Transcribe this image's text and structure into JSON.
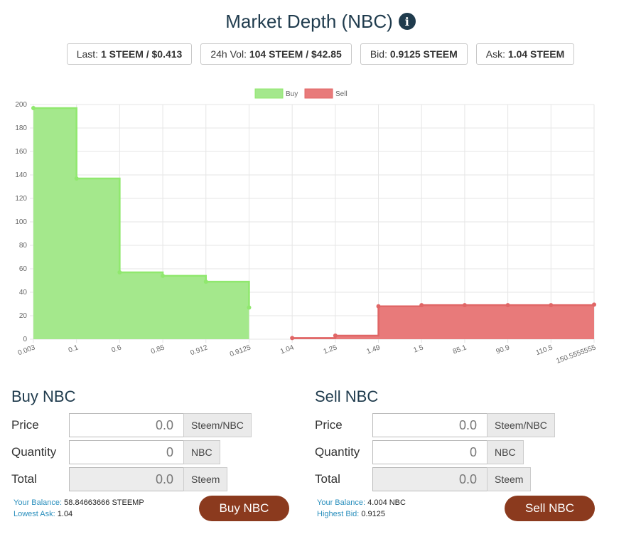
{
  "header": {
    "title": "Market Depth (NBC)",
    "info_icon": "info-circle-icon"
  },
  "stats": [
    {
      "label": "Last:",
      "value": "1 STEEM / $0.413"
    },
    {
      "label": "24h Vol:",
      "value": "104 STEEM / $42.85"
    },
    {
      "label": "Bid:",
      "value": "0.9125 STEEM"
    },
    {
      "label": "Ask:",
      "value": "1.04 STEEM"
    }
  ],
  "chart_data": {
    "type": "area",
    "categories": [
      "0.003",
      "0.1",
      "0.6",
      "0.85",
      "0.912",
      "0.9125",
      "1.04",
      "1.25",
      "1.49",
      "1.5",
      "85.1",
      "90.9",
      "110.5",
      "150.5555555"
    ],
    "series": [
      {
        "name": "Buy",
        "color": "#a4e88c",
        "line_color": "#90e86e",
        "values": [
          197,
          137,
          57,
          54,
          49,
          27,
          null,
          null,
          null,
          null,
          null,
          null,
          null,
          null
        ]
      },
      {
        "name": "Sell",
        "color": "#e87a7a",
        "line_color": "#e06666",
        "values": [
          null,
          null,
          null,
          null,
          null,
          null,
          1,
          3,
          28,
          29,
          29,
          29,
          29,
          29.5
        ]
      }
    ],
    "ylim": [
      0,
      200
    ],
    "yticks": [
      0,
      20,
      40,
      60,
      80,
      100,
      120,
      140,
      160,
      180,
      200
    ],
    "step": true,
    "grid": true,
    "legend_position": "top-center"
  },
  "buy": {
    "title": "Buy NBC",
    "price_label": "Price",
    "price_value": "0.0",
    "price_unit": "Steem/NBC",
    "quantity_label": "Quantity",
    "quantity_value": "0",
    "quantity_unit": "NBC",
    "total_label": "Total",
    "total_value": "0.0",
    "total_unit": "Steem",
    "balance_label": "Your Balance:",
    "balance_value": "58.84663666 STEEMP",
    "best_label": "Lowest Ask:",
    "best_value": "1.04",
    "button": "Buy NBC"
  },
  "sell": {
    "title": "Sell NBC",
    "price_label": "Price",
    "price_value": "0.0",
    "price_unit": "Steem/NBC",
    "quantity_label": "Quantity",
    "quantity_value": "0",
    "quantity_unit": "NBC",
    "total_label": "Total",
    "total_value": "0.0",
    "total_unit": "Steem",
    "balance_label": "Your Balance:",
    "balance_value": "4.004 NBC",
    "best_label": "Highest Bid:",
    "best_value": "0.9125",
    "button": "Sell NBC"
  },
  "colors": {
    "title": "#1f3b4d",
    "button": "#8b3a1e",
    "info_label": "#2a8fbd"
  }
}
